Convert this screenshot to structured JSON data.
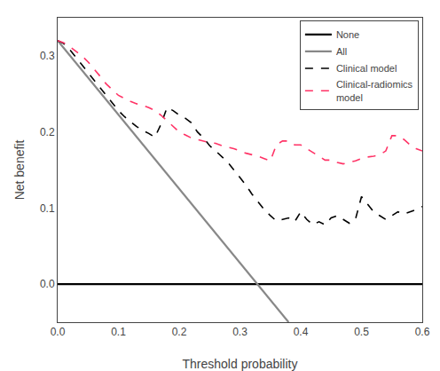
{
  "chart_data": {
    "type": "line",
    "x_label": "Threshold probability",
    "y_label": "Net benefit",
    "xlim": [
      0.0,
      0.6
    ],
    "ylim": [
      -0.05,
      0.35
    ],
    "xticks": [
      {
        "value": 0.0,
        "label": "0.0"
      },
      0.1,
      0.2,
      0.3,
      0.4,
      0.5,
      0.6
    ],
    "yticks": [
      {
        "value": 0.0,
        "label": "0.0"
      },
      0.1,
      0.2,
      0.3
    ],
    "grid": false,
    "legend": "upper right",
    "series": [
      {
        "name": "None",
        "color": "#000000",
        "line_style": "solid",
        "x": [
          0.0,
          0.6
        ],
        "values": [
          0.0,
          0.0
        ]
      },
      {
        "name": "All",
        "color": "#888888",
        "line_style": "solid",
        "x": [
          0.0,
          0.38
        ],
        "values": [
          0.32,
          -0.05
        ]
      },
      {
        "name": "Clinical model",
        "color": "#000000",
        "line_style": "dashed",
        "x": [
          0.0,
          0.01,
          0.02,
          0.03,
          0.04,
          0.05,
          0.06,
          0.07,
          0.08,
          0.09,
          0.1,
          0.11,
          0.12,
          0.13,
          0.14,
          0.15,
          0.16,
          0.17,
          0.18,
          0.19,
          0.2,
          0.21,
          0.22,
          0.23,
          0.24,
          0.25,
          0.26,
          0.27,
          0.28,
          0.29,
          0.3,
          0.31,
          0.32,
          0.33,
          0.34,
          0.35,
          0.36,
          0.37,
          0.38,
          0.39,
          0.4,
          0.41,
          0.42,
          0.43,
          0.44,
          0.45,
          0.46,
          0.47,
          0.48,
          0.49,
          0.5,
          0.51,
          0.52,
          0.53,
          0.54,
          0.55,
          0.56,
          0.57,
          0.58,
          0.59,
          0.6
        ],
        "values": [
          0.32,
          0.316,
          0.308,
          0.298,
          0.288,
          0.278,
          0.268,
          0.258,
          0.248,
          0.238,
          0.228,
          0.22,
          0.213,
          0.207,
          0.202,
          0.198,
          0.193,
          0.21,
          0.232,
          0.228,
          0.222,
          0.218,
          0.212,
          0.2,
          0.192,
          0.182,
          0.175,
          0.168,
          0.16,
          0.15,
          0.14,
          0.13,
          0.118,
          0.108,
          0.098,
          0.09,
          0.083,
          0.085,
          0.087,
          0.082,
          0.095,
          0.085,
          0.078,
          0.082,
          0.078,
          0.087,
          0.09,
          0.085,
          0.08,
          0.085,
          0.115,
          0.105,
          0.095,
          0.09,
          0.085,
          0.09,
          0.095,
          0.092,
          0.095,
          0.098,
          0.102
        ]
      },
      {
        "name": "Clinical-radiomics\nmodel",
        "color": "#FF3366",
        "line_style": "dashed",
        "x": [
          0.0,
          0.01,
          0.02,
          0.03,
          0.04,
          0.05,
          0.06,
          0.07,
          0.08,
          0.09,
          0.1,
          0.11,
          0.12,
          0.13,
          0.14,
          0.15,
          0.16,
          0.17,
          0.18,
          0.19,
          0.2,
          0.21,
          0.22,
          0.23,
          0.24,
          0.25,
          0.26,
          0.27,
          0.28,
          0.29,
          0.3,
          0.31,
          0.32,
          0.33,
          0.34,
          0.35,
          0.36,
          0.37,
          0.38,
          0.39,
          0.4,
          0.41,
          0.42,
          0.43,
          0.44,
          0.45,
          0.46,
          0.47,
          0.48,
          0.49,
          0.5,
          0.51,
          0.52,
          0.53,
          0.54,
          0.55,
          0.56,
          0.57,
          0.58,
          0.59,
          0.6
        ],
        "values": [
          0.32,
          0.317,
          0.312,
          0.306,
          0.3,
          0.292,
          0.283,
          0.273,
          0.263,
          0.255,
          0.248,
          0.244,
          0.24,
          0.237,
          0.235,
          0.232,
          0.228,
          0.222,
          0.215,
          0.208,
          0.2,
          0.196,
          0.192,
          0.19,
          0.188,
          0.186,
          0.185,
          0.182,
          0.18,
          0.178,
          0.175,
          0.172,
          0.17,
          0.168,
          0.165,
          0.162,
          0.183,
          0.188,
          0.188,
          0.183,
          0.183,
          0.178,
          0.172,
          0.167,
          0.163,
          0.163,
          0.16,
          0.158,
          0.16,
          0.162,
          0.165,
          0.167,
          0.168,
          0.17,
          0.175,
          0.195,
          0.195,
          0.19,
          0.183,
          0.178,
          0.175
        ]
      }
    ]
  }
}
